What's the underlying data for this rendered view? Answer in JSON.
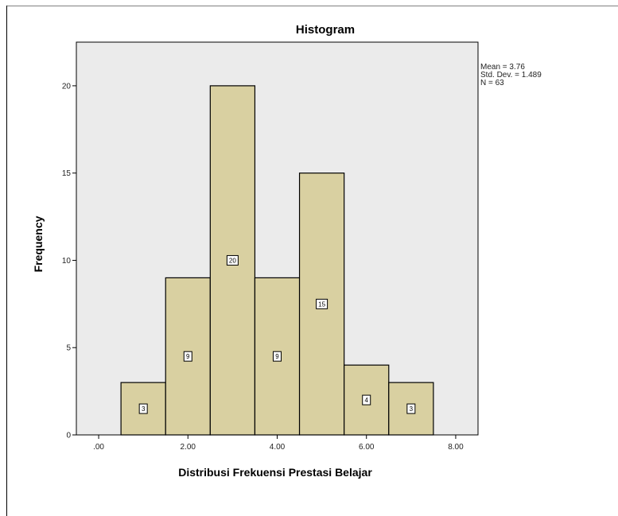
{
  "chart_data": {
    "type": "bar",
    "title": "Histogram",
    "xlabel": "Distribusi Frekuensi Prestasi Belajar",
    "ylabel": "Frequency",
    "bins": [
      {
        "x0": 0.5,
        "x1": 1.5,
        "value": 3
      },
      {
        "x0": 1.5,
        "x1": 2.5,
        "value": 9
      },
      {
        "x0": 2.5,
        "x1": 3.5,
        "value": 20
      },
      {
        "x0": 3.5,
        "x1": 4.5,
        "value": 9
      },
      {
        "x0": 4.5,
        "x1": 5.5,
        "value": 15
      },
      {
        "x0": 5.5,
        "x1": 6.5,
        "value": 4
      },
      {
        "x0": 6.5,
        "x1": 7.5,
        "value": 3
      }
    ],
    "xlim": [
      -0.5,
      8.5
    ],
    "ylim": [
      0,
      22.5
    ],
    "xticks": [
      0,
      2,
      4,
      6,
      8
    ],
    "xtick_labels": [
      ".00",
      "2.00",
      "4.00",
      "6.00",
      "8.00"
    ],
    "yticks": [
      0,
      5,
      10,
      15,
      20
    ],
    "ytick_labels": [
      "0",
      "5",
      "10",
      "15",
      "20"
    ],
    "stats": [
      "Mean = 3.76",
      "Std. Dev. = 1.489",
      "N = 63"
    ],
    "grid": false,
    "legend": "none",
    "colors": {
      "bar_fill": "#d9d0a1",
      "bar_stroke": "#000000",
      "plot_background": "#ebebeb"
    }
  }
}
